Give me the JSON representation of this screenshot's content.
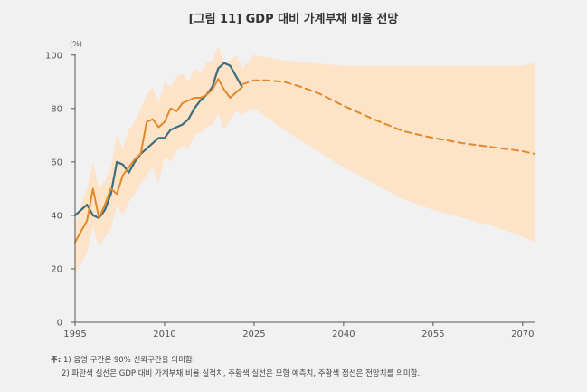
{
  "title": "[그림 11] GDP 대비 가계부채 비율 전망",
  "notes": {
    "head": "주:",
    "line1": "1) 음영 구간은 90% 신뢰구간을 의미함.",
    "line2": "2) 파란색 실선은 GDP 대비 가계부채 비율 실적치, 주황색 실선은 모형 예측치, 주황색 점선은 전망치를 의미함."
  },
  "colors": {
    "background": "#f1f1f1",
    "band": "#fde3c8",
    "actual": "#3d6e7e",
    "model": "#e08a2c",
    "axis": "#555555"
  },
  "chart_data": {
    "type": "line",
    "title": "[그림 11] GDP 대비 가계부채 비율 전망",
    "ylabel": "(%)",
    "xlabel": "",
    "xlim": [
      1995,
      2072
    ],
    "ylim": [
      0,
      105
    ],
    "x_ticks": [
      1995,
      2010,
      2025,
      2040,
      2055,
      2070
    ],
    "y_ticks": [
      0,
      20,
      40,
      60,
      80,
      100
    ],
    "grid": false,
    "confidence_band": {
      "x": [
        1995,
        1996,
        1997,
        1998,
        1999,
        2000,
        2001,
        2002,
        2003,
        2004,
        2005,
        2006,
        2007,
        2008,
        2009,
        2010,
        2011,
        2012,
        2013,
        2014,
        2015,
        2016,
        2017,
        2018,
        2019,
        2020,
        2021,
        2022,
        2023,
        2025,
        2030,
        2035,
        2040,
        2045,
        2050,
        2055,
        2060,
        2065,
        2070,
        2072
      ],
      "upper": [
        36,
        44,
        50,
        60,
        50,
        53,
        58,
        70,
        65,
        72,
        75,
        80,
        85,
        88,
        82,
        90,
        88,
        92,
        93,
        90,
        95,
        93,
        97,
        98,
        103,
        97,
        98,
        100,
        95,
        100,
        98,
        97,
        96,
        96,
        96,
        96,
        96,
        96,
        96,
        97
      ],
      "lower": [
        18,
        22,
        26,
        36,
        28,
        32,
        35,
        44,
        40,
        45,
        48,
        52,
        55,
        58,
        52,
        62,
        60,
        64,
        66,
        65,
        70,
        71,
        73,
        74,
        78,
        72,
        76,
        79,
        78,
        80,
        72,
        65,
        58,
        52,
        46,
        42,
        39,
        36,
        32,
        30
      ]
    },
    "series": [
      {
        "x": [
          1995,
          1996,
          1997,
          1998,
          1999,
          2000,
          2001,
          2002,
          2003,
          2004,
          2005,
          2006,
          2007,
          2008,
          2009,
          2010,
          2011,
          2012,
          2013,
          2014,
          2015,
          2016,
          2017,
          2018,
          2019,
          2020,
          2021,
          2022,
          2023
        ],
        "values": [
          40,
          42,
          44,
          40,
          39,
          42,
          48,
          60,
          59,
          56,
          60,
          63,
          65,
          67,
          69,
          69,
          72,
          73,
          74,
          76,
          80,
          83,
          85,
          88,
          95,
          97,
          96,
          92,
          88
        ],
        "style": "solid"
      },
      {
        "x": [
          1995,
          1996,
          1997,
          1998,
          1999,
          2000,
          2001,
          2002,
          2003,
          2004,
          2005,
          2006,
          2007,
          2008,
          2009,
          2010,
          2011,
          2012,
          2013,
          2014,
          2015,
          2016,
          2017,
          2018,
          2019,
          2020,
          2021,
          2022,
          2023
        ],
        "values": [
          30,
          34,
          38,
          50,
          39,
          44,
          50,
          48,
          55,
          58,
          61,
          63,
          75,
          76,
          73,
          75,
          80,
          79,
          82,
          83,
          84,
          84,
          85,
          87,
          91,
          87,
          84,
          86,
          88
        ],
        "style": "solid"
      },
      {
        "x": [
          2023,
          2025,
          2027,
          2030,
          2033,
          2036,
          2040,
          2045,
          2050,
          2055,
          2060,
          2065,
          2070,
          2072
        ],
        "values": [
          89,
          90.5,
          90.5,
          90,
          88,
          85.5,
          81,
          76,
          71.5,
          69,
          67,
          65.5,
          64,
          63
        ],
        "style": "dashed"
      }
    ]
  }
}
